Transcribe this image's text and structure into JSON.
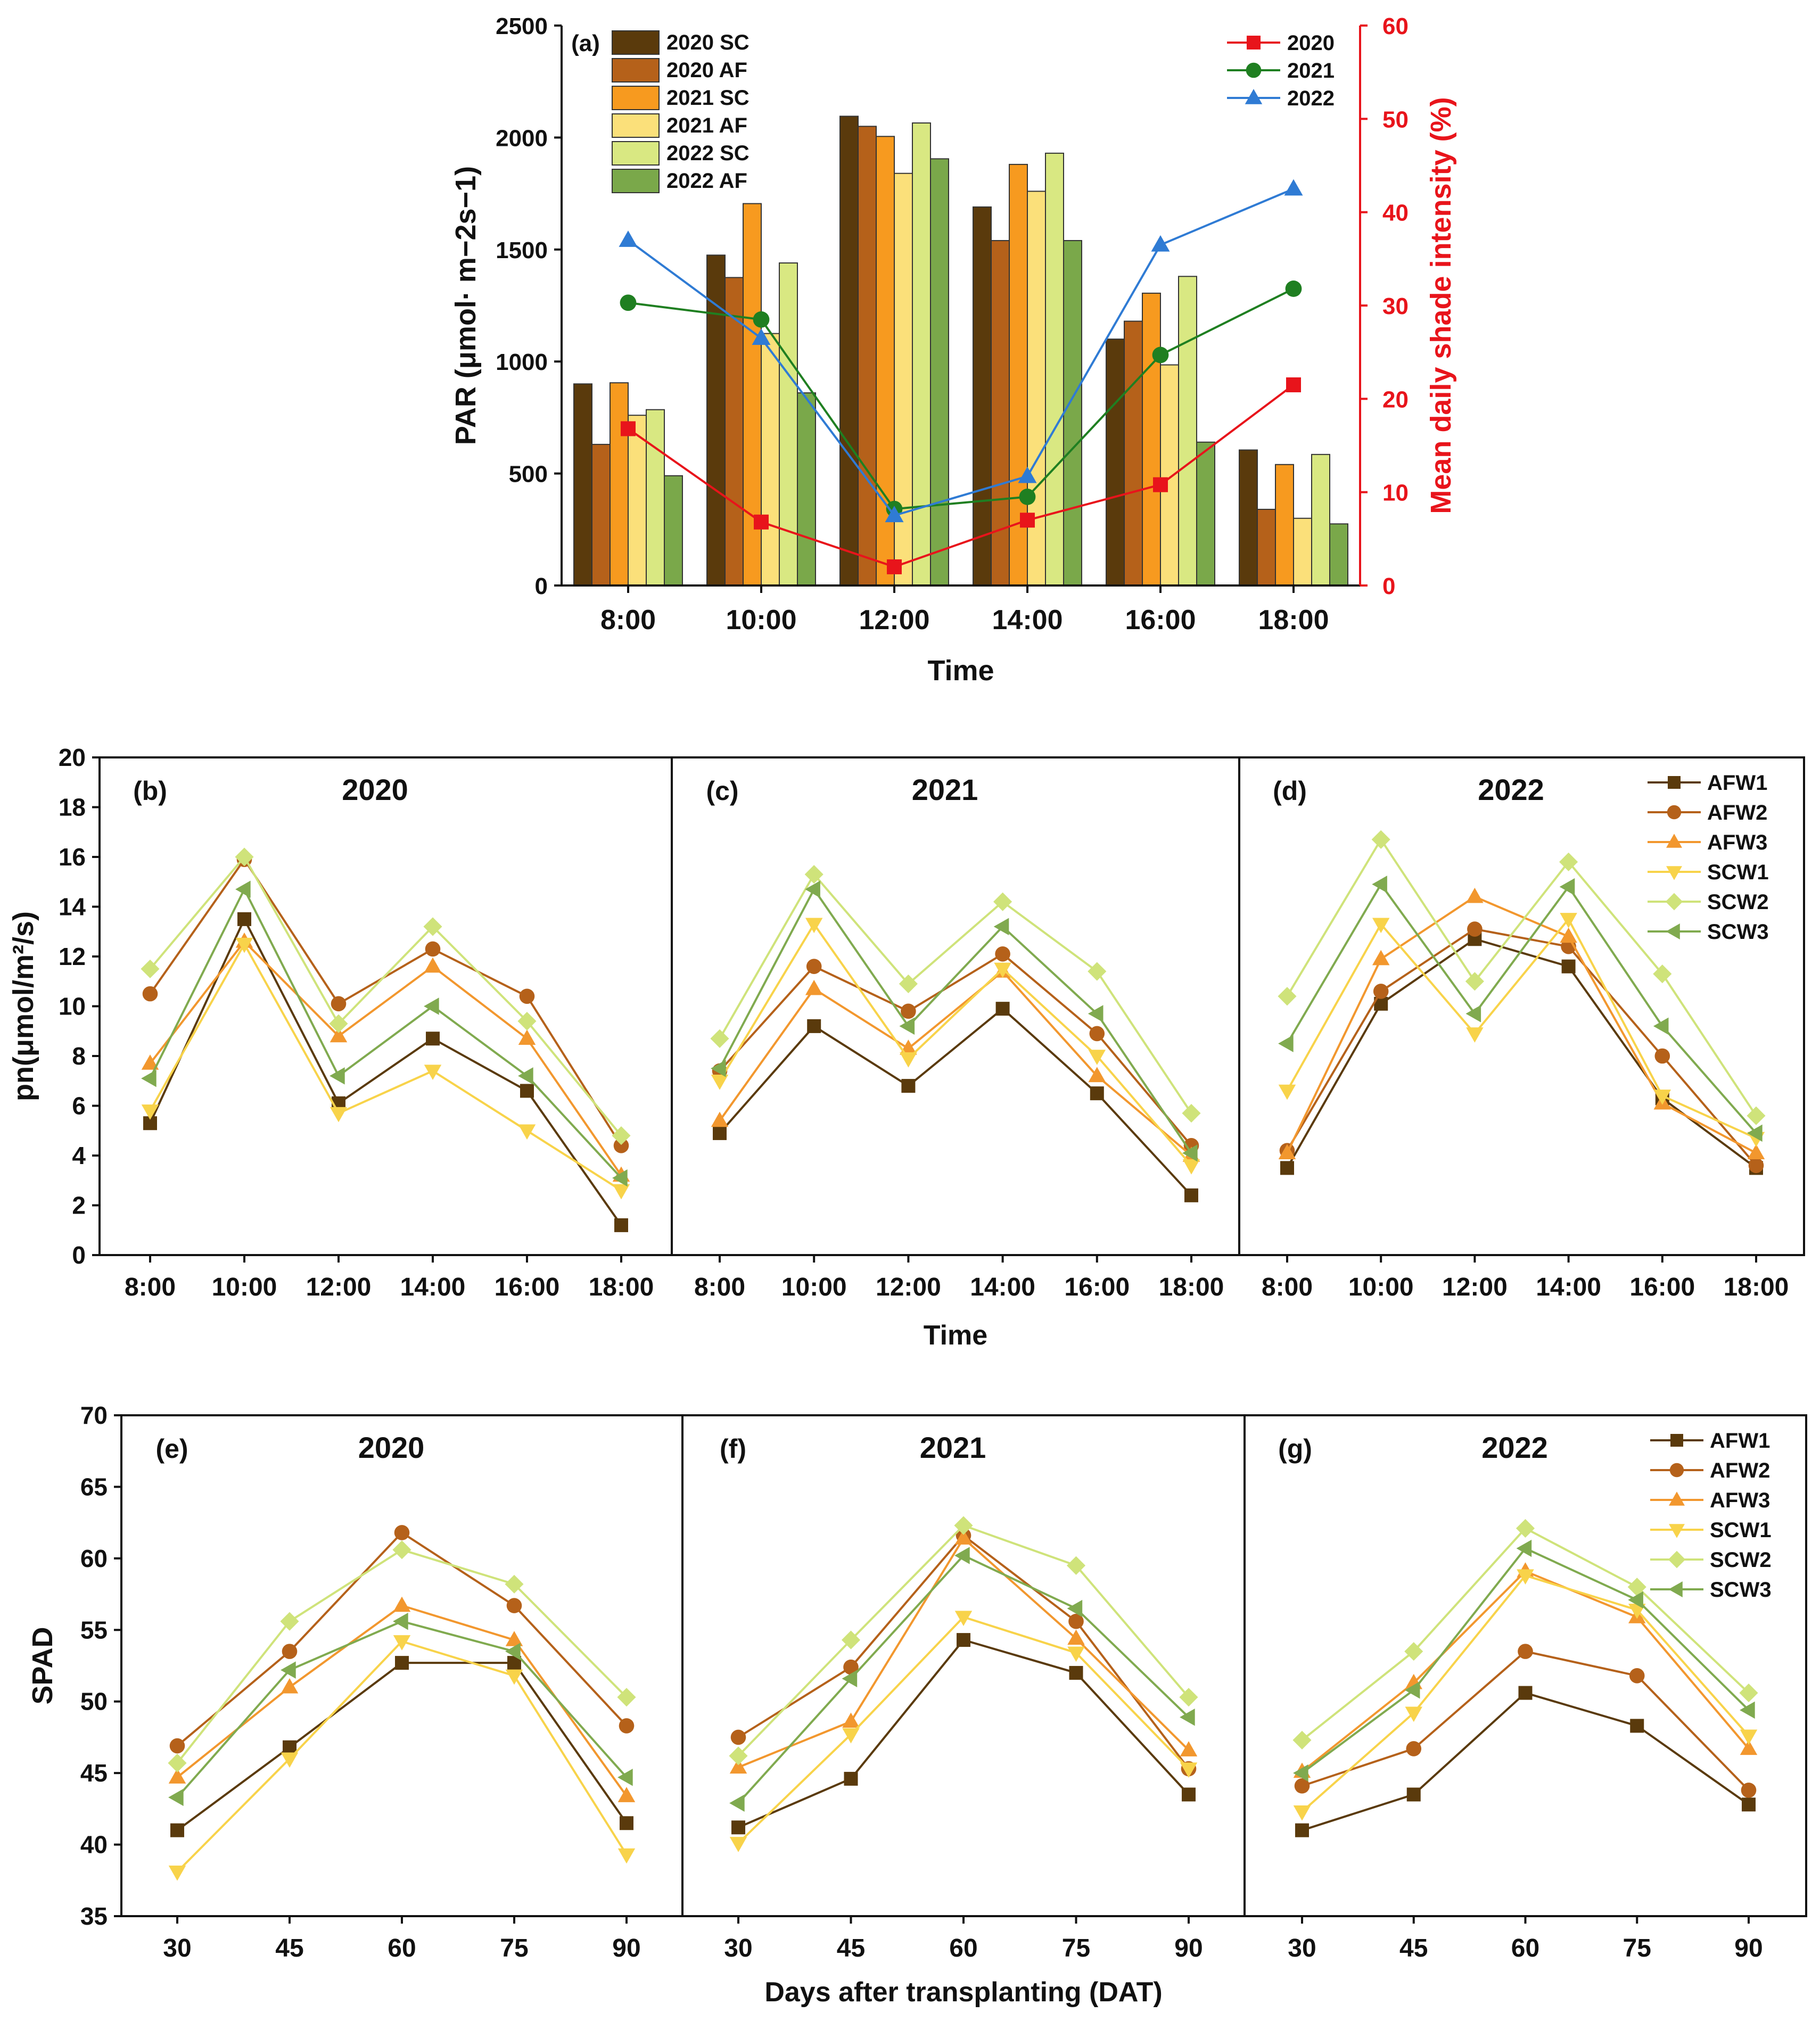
{
  "figure": {
    "colors": {
      "AFW1": "#5a3a0c",
      "AFW2": "#b5611a",
      "AFW3": "#f2972e",
      "SCW1": "#f8d34a",
      "SCW2": "#cfe37a",
      "SCW3": "#80aa4f",
      "2020 SC": "#5a3a0c",
      "2020 AF": "#b5611a",
      "2021 SC": "#f79a1f",
      "2021 AF": "#fbe07a",
      "2022 SC": "#d9e882",
      "2022 AF": "#7aa84a",
      "2020": "#e8141b",
      "2021": "#1f7f21",
      "2022": "#2f7bd4"
    }
  },
  "chart_data": [
    {
      "id": "a",
      "type": "bar",
      "panel_label": "(a)",
      "xlabel": "Time",
      "ylabel": "PAR (μmol· m−2s−1)",
      "y2label": "Mean daily shade intensity (%)",
      "ylim": [
        0,
        2500
      ],
      "y2lim": [
        0,
        60
      ],
      "yticks": [
        "0",
        "500",
        "1000",
        "1500",
        "2000",
        "2500"
      ],
      "y2ticks": [
        "0",
        "10",
        "20",
        "30",
        "40",
        "50",
        "60"
      ],
      "categories": [
        "8:00",
        "10:00",
        "12:00",
        "14:00",
        "16:00",
        "18:00"
      ],
      "bar_series": [
        {
          "name": "2020 SC",
          "values": [
            900,
            1475,
            2095,
            1690,
            1100,
            605
          ]
        },
        {
          "name": "2020 AF",
          "values": [
            630,
            1375,
            2050,
            1540,
            1180,
            340
          ]
        },
        {
          "name": "2021 SC",
          "values": [
            905,
            1705,
            2005,
            1880,
            1305,
            540
          ]
        },
        {
          "name": "2021 AF",
          "values": [
            760,
            1125,
            1840,
            1760,
            985,
            300
          ]
        },
        {
          "name": "2022 SC",
          "values": [
            785,
            1440,
            2065,
            1930,
            1380,
            585
          ]
        },
        {
          "name": "2022 AF",
          "values": [
            490,
            860,
            1905,
            1540,
            640,
            275
          ]
        }
      ],
      "line_series": [
        {
          "name": "2020",
          "marker": "square",
          "values": [
            16.8,
            6.8,
            2.0,
            7.0,
            10.8,
            21.5
          ]
        },
        {
          "name": "2021",
          "marker": "circle",
          "values": [
            30.3,
            28.5,
            8.2,
            9.5,
            24.7,
            31.8
          ]
        },
        {
          "name": "2022",
          "marker": "triangle",
          "values": [
            37.0,
            26.5,
            7.5,
            11.7,
            36.5,
            42.5
          ]
        }
      ]
    },
    {
      "id": "b",
      "type": "line",
      "panel_label": "(b)",
      "title": "2020",
      "ylabel": "pn(μmol/m²/s)",
      "xlabel": "Time",
      "ylim": [
        0,
        20
      ],
      "yticks": [
        "0",
        "2",
        "4",
        "6",
        "8",
        "10",
        "12",
        "14",
        "16",
        "18",
        "20"
      ],
      "categories": [
        "8:00",
        "10:00",
        "12:00",
        "14:00",
        "16:00",
        "18:00"
      ],
      "series": [
        {
          "name": "AFW1",
          "values": [
            5.3,
            13.5,
            6.1,
            8.7,
            6.6,
            1.2
          ]
        },
        {
          "name": "AFW2",
          "values": [
            10.5,
            15.9,
            10.1,
            12.3,
            10.4,
            4.4
          ]
        },
        {
          "name": "AFW3",
          "values": [
            7.7,
            12.6,
            8.8,
            11.6,
            8.7,
            3.2
          ]
        },
        {
          "name": "SCW1",
          "values": [
            5.8,
            12.5,
            5.7,
            7.4,
            5.0,
            2.6
          ]
        },
        {
          "name": "SCW2",
          "values": [
            11.5,
            16.0,
            9.3,
            13.2,
            9.4,
            4.8
          ]
        },
        {
          "name": "SCW3",
          "values": [
            7.1,
            14.7,
            7.2,
            10.0,
            7.2,
            3.1
          ]
        }
      ]
    },
    {
      "id": "c",
      "type": "line",
      "panel_label": "(c)",
      "title": "2021",
      "categories": [
        "8:00",
        "10:00",
        "12:00",
        "14:00",
        "16:00",
        "18:00"
      ],
      "series": [
        {
          "name": "AFW1",
          "values": [
            4.9,
            9.2,
            6.8,
            9.9,
            6.5,
            2.4
          ]
        },
        {
          "name": "AFW2",
          "values": [
            7.4,
            11.6,
            9.8,
            12.1,
            8.9,
            4.4
          ]
        },
        {
          "name": "AFW3",
          "values": [
            5.4,
            10.7,
            8.3,
            11.4,
            7.2,
            4.0
          ]
        },
        {
          "name": "SCW1",
          "values": [
            7.0,
            13.3,
            7.9,
            11.5,
            8.0,
            3.6
          ]
        },
        {
          "name": "SCW2",
          "values": [
            8.7,
            15.3,
            10.9,
            14.2,
            11.4,
            5.7
          ]
        },
        {
          "name": "SCW3",
          "values": [
            7.5,
            14.7,
            9.2,
            13.2,
            9.7,
            4.1
          ]
        }
      ]
    },
    {
      "id": "d",
      "type": "line",
      "panel_label": "(d)",
      "title": "2022",
      "categories": [
        "8:00",
        "10:00",
        "12:00",
        "14:00",
        "16:00",
        "18:00"
      ],
      "series": [
        {
          "name": "AFW1",
          "values": [
            3.5,
            10.1,
            12.7,
            11.6,
            6.3,
            3.5
          ]
        },
        {
          "name": "AFW2",
          "values": [
            4.2,
            10.6,
            13.1,
            12.4,
            8.0,
            3.6
          ]
        },
        {
          "name": "AFW3",
          "values": [
            4.1,
            11.9,
            14.4,
            12.8,
            6.1,
            4.1
          ]
        },
        {
          "name": "SCW1",
          "values": [
            6.6,
            13.3,
            8.9,
            13.5,
            6.4,
            4.7
          ]
        },
        {
          "name": "SCW2",
          "values": [
            10.4,
            16.7,
            11.0,
            15.8,
            11.3,
            5.6
          ]
        },
        {
          "name": "SCW3",
          "values": [
            8.5,
            14.9,
            9.7,
            14.8,
            9.2,
            4.9
          ]
        }
      ]
    },
    {
      "id": "e",
      "type": "line",
      "panel_label": "(e)",
      "title": "2020",
      "ylabel": "SPAD",
      "xlabel": "Days after transplanting (DAT)",
      "ylim": [
        35,
        70
      ],
      "yticks": [
        "35",
        "40",
        "45",
        "50",
        "55",
        "60",
        "65",
        "70"
      ],
      "categories": [
        "30",
        "45",
        "60",
        "75",
        "90"
      ],
      "series": [
        {
          "name": "AFW1",
          "values": [
            41.0,
            46.8,
            52.7,
            52.7,
            41.5
          ]
        },
        {
          "name": "AFW2",
          "values": [
            46.9,
            53.5,
            61.8,
            56.7,
            48.3
          ]
        },
        {
          "name": "AFW3",
          "values": [
            44.7,
            51.0,
            56.7,
            54.3,
            43.4
          ]
        },
        {
          "name": "SCW1",
          "values": [
            38.1,
            46.0,
            54.2,
            51.8,
            39.3
          ]
        },
        {
          "name": "SCW2",
          "values": [
            45.7,
            55.6,
            60.6,
            58.2,
            50.3
          ]
        },
        {
          "name": "SCW3",
          "values": [
            43.3,
            52.2,
            55.6,
            53.5,
            44.7
          ]
        }
      ]
    },
    {
      "id": "f",
      "type": "line",
      "panel_label": "(f)",
      "title": "2021",
      "categories": [
        "30",
        "45",
        "60",
        "75",
        "90"
      ],
      "series": [
        {
          "name": "AFW1",
          "values": [
            41.2,
            44.6,
            54.3,
            52.0,
            43.5
          ]
        },
        {
          "name": "AFW2",
          "values": [
            47.5,
            52.4,
            61.6,
            55.6,
            45.3
          ]
        },
        {
          "name": "AFW3",
          "values": [
            45.4,
            48.6,
            61.4,
            54.4,
            46.6
          ]
        },
        {
          "name": "SCW1",
          "values": [
            40.1,
            47.7,
            55.9,
            53.4,
            45.3
          ]
        },
        {
          "name": "SCW2",
          "values": [
            46.2,
            54.3,
            62.3,
            59.5,
            50.3
          ]
        },
        {
          "name": "SCW3",
          "values": [
            42.9,
            51.6,
            60.2,
            56.5,
            48.9
          ]
        }
      ]
    },
    {
      "id": "g",
      "type": "line",
      "panel_label": "(g)",
      "title": "2022",
      "categories": [
        "30",
        "45",
        "60",
        "75",
        "90"
      ],
      "series": [
        {
          "name": "AFW1",
          "values": [
            41.0,
            43.5,
            50.6,
            48.3,
            42.8
          ]
        },
        {
          "name": "AFW2",
          "values": [
            44.1,
            46.7,
            53.5,
            51.8,
            43.8
          ]
        },
        {
          "name": "AFW3",
          "values": [
            45.1,
            51.3,
            59.1,
            55.9,
            46.7
          ]
        },
        {
          "name": "SCW1",
          "values": [
            42.3,
            49.2,
            58.8,
            56.4,
            47.6
          ]
        },
        {
          "name": "SCW2",
          "values": [
            47.3,
            53.5,
            62.1,
            58.0,
            50.6
          ]
        },
        {
          "name": "SCW3",
          "values": [
            45.0,
            50.8,
            60.7,
            57.1,
            49.4
          ]
        }
      ]
    }
  ]
}
